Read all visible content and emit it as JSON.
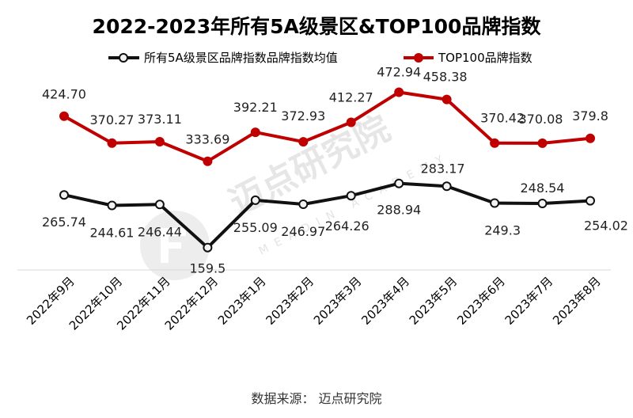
{
  "chart_data": {
    "type": "line",
    "title": "2022-2023年所有5A级景区&TOP100品牌指数",
    "categories": [
      "2022年9月",
      "2022年10月",
      "2022年11月",
      "2022年12月",
      "2023年1月",
      "2023年2月",
      "2023年3月",
      "2023年4月",
      "2023年5月",
      "2023年6月",
      "2023年7月",
      "2023年8月"
    ],
    "series": [
      {
        "name": "所有5A级景区品牌指数品牌指数均值",
        "color": "#111111",
        "marker": "#f2f2f2",
        "values": [
          265.74,
          244.61,
          246.44,
          159.5,
          255.09,
          246.97,
          264.26,
          288.94,
          283.17,
          249.3,
          248.54,
          254.02
        ],
        "labels": [
          "265.74",
          "244.61",
          "246.44",
          "159.5",
          "255.09",
          "246.97",
          "264.26",
          "288.94",
          "283.17",
          "249.3",
          "248.54",
          "254.02"
        ]
      },
      {
        "name": "TOP100品牌指数",
        "color": "#c00000",
        "marker": "#c00000",
        "values": [
          424.7,
          370.27,
          373.11,
          333.69,
          392.21,
          372.93,
          412.27,
          472.94,
          458.38,
          370.42,
          370.08,
          379.8
        ],
        "labels": [
          "424.70",
          "370.27",
          "373.11",
          "333.69",
          "392.21",
          "372.93",
          "412.27",
          "472.94",
          "458.38",
          "370.42",
          "370.08",
          "379.8"
        ]
      }
    ],
    "xlabel": "",
    "ylabel": "",
    "ylim": [
      100,
      560
    ],
    "legend_position": "top"
  },
  "watermark": {
    "name": "迈点研究院",
    "sub": "MEADIN ACADEMY"
  },
  "source": "数据来源：  迈点研究院"
}
